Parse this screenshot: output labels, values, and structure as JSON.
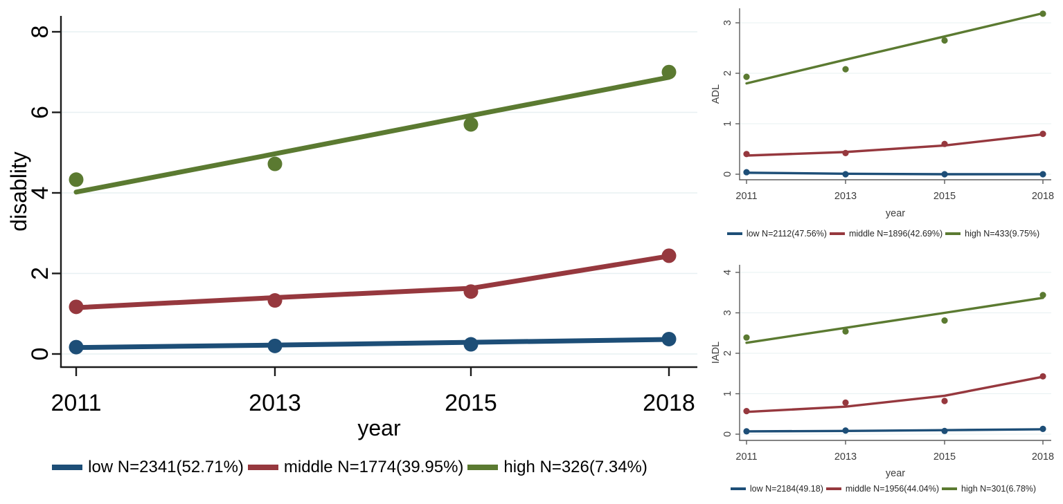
{
  "figure": {
    "background": "#ffffff"
  },
  "palette": {
    "low": "#1d4e77",
    "middle": "#96383e",
    "high": "#5b7a31",
    "grid": "#e7f0f2"
  },
  "chart_data": [
    {
      "id": "disability",
      "type": "scatter",
      "fit_lines": true,
      "x_categories": [
        "2011",
        "2013",
        "2015",
        "2018"
      ],
      "xlabel": "year",
      "ylabel": "disablity",
      "ylim": [
        0,
        8
      ],
      "yticks": [
        0,
        2,
        4,
        6,
        8
      ],
      "grid": true,
      "legend_position": "bottom",
      "series": [
        {
          "name": "low",
          "color_key": "low",
          "legend_label": "low N=2341(52.71%)",
          "points": [
            0.17,
            0.2,
            0.24,
            0.37
          ],
          "fit": [
            0.16,
            0.22,
            0.29,
            0.36
          ]
        },
        {
          "name": "middle",
          "color_key": "middle",
          "legend_label": "middle N=1774(39.95%)",
          "points": [
            1.17,
            1.33,
            1.55,
            2.44
          ],
          "fit": [
            1.15,
            1.4,
            1.63,
            2.43
          ]
        },
        {
          "name": "high",
          "color_key": "high",
          "legend_label": "high N=326(7.34%)",
          "points": [
            4.33,
            4.72,
            5.7,
            7.0
          ],
          "fit": [
            4.02,
            4.97,
            5.92,
            6.87
          ]
        }
      ]
    },
    {
      "id": "adl",
      "type": "scatter",
      "fit_lines": true,
      "x_categories": [
        "2011",
        "2013",
        "2015",
        "2018"
      ],
      "xlabel": "year",
      "ylabel": "ADL",
      "ylim": [
        0,
        3
      ],
      "yticks": [
        0,
        1,
        2,
        3
      ],
      "grid": true,
      "legend_position": "bottom",
      "series": [
        {
          "name": "low",
          "color_key": "low",
          "legend_label": "low N=2112(47.56%)",
          "points": [
            0.04,
            0.0,
            0.0,
            0.0
          ],
          "fit": [
            0.03,
            0.01,
            0.0,
            0.0
          ]
        },
        {
          "name": "middle",
          "color_key": "middle",
          "legend_label": "middle N=1896(42.69%)",
          "points": [
            0.4,
            0.42,
            0.6,
            0.8
          ],
          "fit": [
            0.37,
            0.44,
            0.57,
            0.79
          ]
        },
        {
          "name": "high",
          "color_key": "high",
          "legend_label": "high N=433(9.75%)",
          "points": [
            1.93,
            2.08,
            2.65,
            3.18
          ],
          "fit": [
            1.8,
            2.27,
            2.73,
            3.19
          ]
        }
      ]
    },
    {
      "id": "iadl",
      "type": "scatter",
      "fit_lines": true,
      "x_categories": [
        "2011",
        "2013",
        "2015",
        "2018"
      ],
      "xlabel": "year",
      "ylabel": "IADL",
      "ylim": [
        0,
        4
      ],
      "yticks": [
        0,
        1,
        2,
        3,
        4
      ],
      "grid": true,
      "legend_position": "bottom",
      "series": [
        {
          "name": "low",
          "color_key": "low",
          "legend_label": "low N=2184(49.18)",
          "points": [
            0.07,
            0.09,
            0.08,
            0.13
          ],
          "fit": [
            0.07,
            0.08,
            0.1,
            0.12
          ]
        },
        {
          "name": "middle",
          "color_key": "middle",
          "legend_label": "middle N=1956(44.04%)",
          "points": [
            0.57,
            0.78,
            0.82,
            1.43
          ],
          "fit": [
            0.55,
            0.68,
            0.95,
            1.42
          ]
        },
        {
          "name": "high",
          "color_key": "high",
          "legend_label": "high N=301(6.78%)",
          "points": [
            2.39,
            2.54,
            2.81,
            3.44
          ],
          "fit": [
            2.26,
            2.63,
            3.0,
            3.37
          ]
        }
      ]
    }
  ]
}
